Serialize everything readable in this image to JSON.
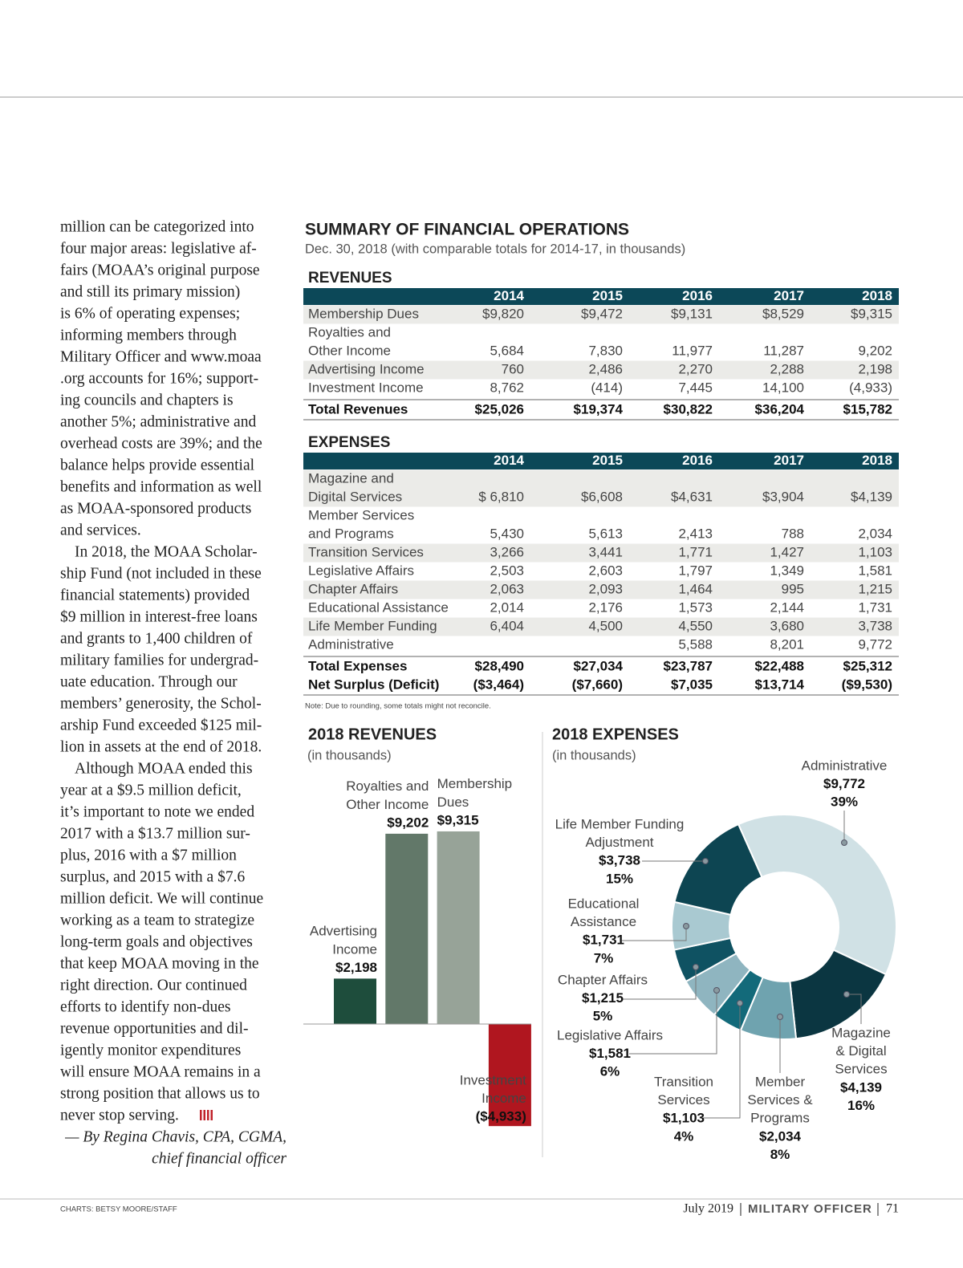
{
  "article": {
    "paragraphs": [
      [
        "million can be categorized into",
        "four major areas: legislative af-",
        "fairs (MOAA’s original purpose",
        "and still its primary mission)",
        "is 6% of operating expenses;",
        "informing members through",
        "Military Officer and www.moaa",
        ".org accounts for 16%; support-",
        "ing councils and chapters is",
        "another 5%; administrative and",
        "overhead costs are 39%; and the",
        "balance helps provide essential",
        "benefits and information as well",
        "as MOAA-sponsored products",
        "and services."
      ],
      [
        "In 2018, the MOAA Scholar-",
        "ship Fund (not included in these",
        "financial statements) provided",
        "$9 million in interest-free loans",
        "and grants to 1,400 children of",
        "military families for undergrad-",
        "uate education. Through our",
        "members’ generosity, the Schol-",
        "arship Fund exceeded $125 mil-",
        "lion in assets at the end of 2018."
      ],
      [
        "Although MOAA ended this",
        "year at a $9.5 million deficit,",
        "it’s important to note we ended",
        "2017 with a $13.7 million sur-",
        "plus, 2016 with a $7 million",
        "surplus, and 2015 with a $7.6",
        "million deficit. We will continue",
        "working as a team to strategize",
        "long-term goals and objectives",
        "that keep MOAA moving in the",
        "right direction.  Our continued",
        "efforts to identify non-dues",
        "revenue opportunities and dil-",
        "igently monitor expenditures",
        "will ensure MOAA remains in a",
        "strong position that allows us to",
        "never stop serving."
      ]
    ],
    "byline": [
      "— By Regina Chavis, CPA, CGMA,",
      "chief financial officer"
    ]
  },
  "summary": {
    "title": "SUMMARY OF FINANCIAL OPERATIONS",
    "subtitle": "Dec. 30, 2018 (with comparable totals for 2014-17, in thousands)",
    "revenues": {
      "heading": "REVENUES",
      "columns": [
        "2014",
        "2015",
        "2016",
        "2017",
        "2018"
      ],
      "rows": [
        {
          "label": [
            "Membership Dues"
          ],
          "values": [
            "$9,820",
            "$9,472",
            "$9,131",
            "$8,529",
            "$9,315"
          ]
        },
        {
          "label": [
            "Royalties and",
            "Other Income"
          ],
          "values": [
            "5,684",
            "7,830",
            "11,977",
            "11,287",
            "9,202"
          ]
        },
        {
          "label": [
            "Advertising Income"
          ],
          "values": [
            "760",
            "2,486",
            "2,270",
            "2,288",
            "2,198"
          ]
        },
        {
          "label": [
            "Investment Income"
          ],
          "values": [
            "8,762",
            "(414)",
            "7,445",
            "14,100",
            "(4,933)"
          ]
        }
      ],
      "totals": [
        {
          "label": [
            "Total Revenues"
          ],
          "values": [
            "$25,026",
            "$19,374",
            "$30,822",
            "$36,204",
            "$15,782"
          ]
        }
      ]
    },
    "expenses": {
      "heading": "EXPENSES",
      "columns": [
        "2014",
        "2015",
        "2016",
        "2017",
        "2018"
      ],
      "rows": [
        {
          "label": [
            "Magazine and",
            "Digital Services"
          ],
          "values": [
            "$ 6,810",
            "$6,608",
            "$4,631",
            "$3,904",
            "$4,139"
          ]
        },
        {
          "label": [
            "Member Services",
            "and Programs"
          ],
          "values": [
            "5,430",
            "5,613",
            "2,413",
            "788",
            "2,034"
          ]
        },
        {
          "label": [
            "Transition Services"
          ],
          "values": [
            "3,266",
            "3,441",
            "1,771",
            "1,427",
            "1,103"
          ]
        },
        {
          "label": [
            "Legislative Affairs"
          ],
          "values": [
            "2,503",
            "2,603",
            "1,797",
            "1,349",
            "1,581"
          ]
        },
        {
          "label": [
            "Chapter Affairs"
          ],
          "values": [
            "2,063",
            "2,093",
            "1,464",
            "995",
            "1,215"
          ]
        },
        {
          "label": [
            "Educational Assistance"
          ],
          "values": [
            "2,014",
            "2,176",
            "1,573",
            "2,144",
            "1,731"
          ]
        },
        {
          "label": [
            "Life Member Funding"
          ],
          "values": [
            "6,404",
            "4,500",
            "4,550",
            "3,680",
            "3,738"
          ]
        },
        {
          "label": [
            "Administrative"
          ],
          "values": [
            null,
            null,
            "5,588",
            "8,201",
            "9,772"
          ]
        }
      ],
      "totals": [
        {
          "label": [
            "Total Expenses"
          ],
          "values": [
            "$28,490",
            "$27,034",
            "$23,787",
            "$22,488",
            "$25,312"
          ]
        },
        {
          "label": [
            "Net Surplus (Deficit)"
          ],
          "values": [
            "($3,464)",
            "($7,660)",
            "$7,035",
            "$13,714",
            "($9,530)"
          ]
        }
      ]
    },
    "note": "Note: Due to rounding, some totals might not reconcile."
  },
  "chart_data": [
    {
      "type": "bar",
      "title": "2018 REVENUES",
      "subtitle": "(in thousands)",
      "categories": [
        [
          "Advertising",
          "Income"
        ],
        [
          "Royalties and",
          "Other Income"
        ],
        [
          "Membership",
          "Dues"
        ],
        [
          "Investment",
          "Income"
        ]
      ],
      "values": [
        2198,
        9202,
        9315,
        -4933
      ],
      "value_labels": [
        "$2,198",
        "$9,202",
        "$9,315",
        "($4,933)"
      ],
      "colors": [
        "#1e4d3c",
        "#627869",
        "#97a398",
        "#b0161f"
      ],
      "ylim": [
        -5000,
        10000
      ]
    },
    {
      "type": "pie",
      "title": "2018 EXPENSES",
      "subtitle": "(in thousands)",
      "categories": [
        [
          "Administrative"
        ],
        [
          "Magazine",
          "& Digital",
          "Services"
        ],
        [
          "Member",
          "Services &",
          "Programs"
        ],
        [
          "Transition",
          "Services"
        ],
        [
          "Legislative Affairs"
        ],
        [
          "Chapter Affairs"
        ],
        [
          "Educational",
          "Assistance"
        ],
        [
          "Life Member Funding",
          "Adjustment"
        ]
      ],
      "values": [
        9772,
        4139,
        2034,
        1103,
        1581,
        1215,
        1731,
        3738
      ],
      "value_labels": [
        "$9,772",
        "$4,139",
        "$2,034",
        "$1,103",
        "$1,581",
        "$1,215",
        "$1,731",
        "$3,738"
      ],
      "percent_labels": [
        "39%",
        "16%",
        "8%",
        "4%",
        "6%",
        "5%",
        "7%",
        "15%"
      ],
      "colors": [
        "#d0e1e5",
        "#0b3641",
        "#6fa3af",
        "#136a7a",
        "#8fb5c0",
        "#0f5262",
        "#a9c9d1",
        "#0d4552"
      ]
    }
  ],
  "footer": {
    "credit": "CHARTS: BETSY MOORE/STAFF",
    "date": "July 2019",
    "magazine": "MILITARY OFFICER",
    "page": "71"
  }
}
